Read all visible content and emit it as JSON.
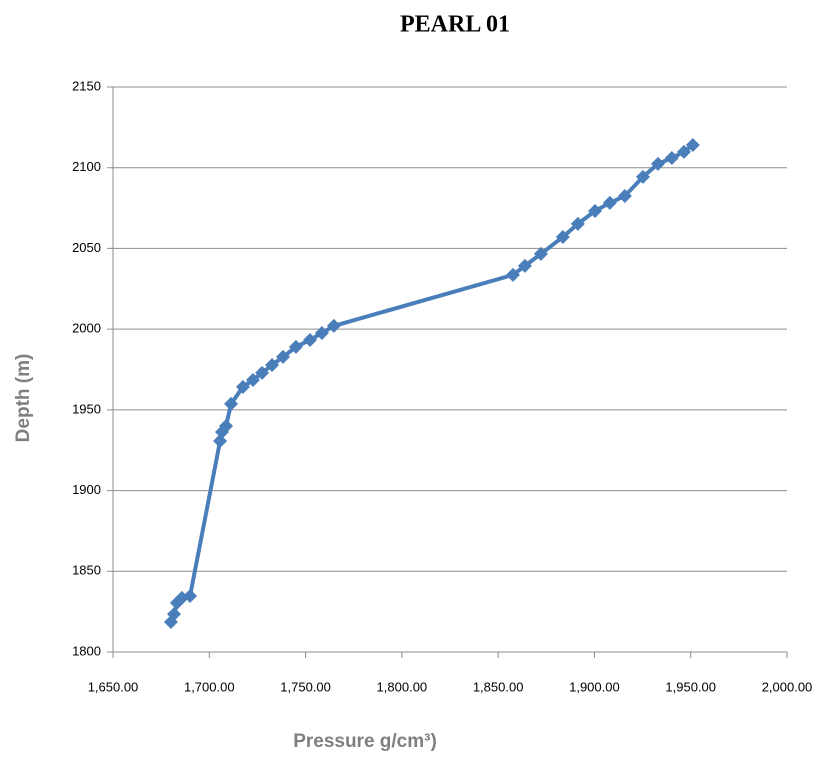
{
  "chart_data": {
    "type": "line",
    "title": "PEARL 01",
    "x_label": "Pressure g/cm³)",
    "y_label": "Depth (m)",
    "series": [
      {
        "name": "PEARL 01",
        "color": "#4a7ebb",
        "x": [
          1680.1,
          1681.7,
          1683.2,
          1685.8,
          1690.0,
          1705.6,
          1706.6,
          1708.7,
          1711.3,
          1717.5,
          1722.7,
          1727.4,
          1732.6,
          1738.3,
          1745.0,
          1752.3,
          1758.5,
          1764.7,
          1857.7,
          1863.9,
          1872.2,
          1883.6,
          1891.4,
          1900.3,
          1908.0,
          1915.8,
          1925.2,
          1933.0,
          1940.2,
          1946.5,
          1951.1
        ],
        "values": [
          1818.6,
          1823.5,
          1830.4,
          1833.5,
          1834.7,
          1930.7,
          1936.3,
          1940.0,
          1953.7,
          1964.2,
          1968.5,
          1972.9,
          1977.8,
          1982.8,
          1989.0,
          1993.3,
          1997.6,
          2002.0,
          2033.6,
          2039.2,
          2046.6,
          2057.1,
          2065.2,
          2073.2,
          2078.2,
          2082.5,
          2094.3,
          2102.4,
          2106.0,
          2109.8,
          2114.1
        ]
      }
    ],
    "xlim": [
      1650,
      2000
    ],
    "xticks": [
      {
        "value": 1650,
        "label": "1,650.00"
      },
      {
        "value": 1700,
        "label": "1,700.00"
      },
      {
        "value": 1750,
        "label": "1,750.00"
      },
      {
        "value": 1800,
        "label": "1,800.00"
      },
      {
        "value": 1850,
        "label": "1,850.00"
      },
      {
        "value": 1900,
        "label": "1,900.00"
      },
      {
        "value": 1950,
        "label": "1,950.00"
      },
      {
        "value": 2000,
        "label": "2,000.00"
      }
    ],
    "ylim": [
      1800,
      2150
    ],
    "yticks": [
      1800,
      1850,
      1900,
      1950,
      2000,
      2050,
      2100,
      2150
    ],
    "grid": true
  }
}
